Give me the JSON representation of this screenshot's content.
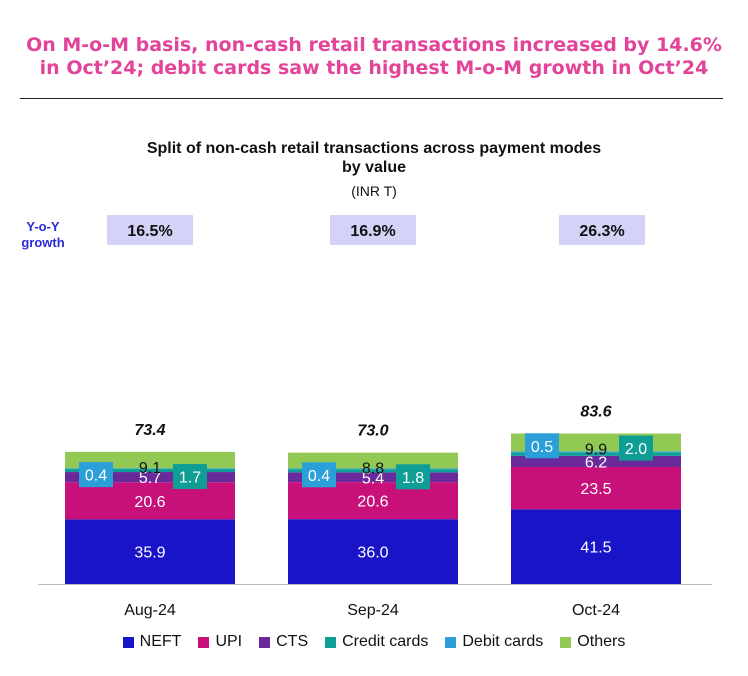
{
  "headline": {
    "line1": "On M-o-M basis, non-cash retail transactions increased by 14.6%",
    "line2": "in Oct’24; debit cards saw the highest M-o-M growth in Oct’24"
  },
  "yoy_label": {
    "line1": "Y-o-Y",
    "line2": "growth"
  },
  "chart_data": {
    "type": "bar",
    "stacked": true,
    "title_lines": [
      "Split of non-cash retail transactions across payment modes",
      "by value"
    ],
    "subtitle": "(INR T)",
    "categories": [
      "Aug-24",
      "Sep-24",
      "Oct-24"
    ],
    "totals": [
      "73.4",
      "73.0",
      "83.6"
    ],
    "yoy_growth": [
      "16.5%",
      "16.9%",
      "26.3%"
    ],
    "series": [
      {
        "name": "NEFT",
        "color": "#1a14c8",
        "values": [
          35.9,
          36.0,
          41.5
        ],
        "labels": [
          "35.9",
          "36.0",
          "41.5"
        ]
      },
      {
        "name": "UPI",
        "color": "#c8107a",
        "values": [
          20.6,
          20.6,
          23.5
        ],
        "labels": [
          "20.6",
          "20.6",
          "23.5"
        ]
      },
      {
        "name": "CTS",
        "color": "#6a2a9c",
        "values": [
          5.7,
          5.4,
          6.2
        ],
        "labels": [
          "5.7",
          "5.4",
          "6.2"
        ]
      },
      {
        "name": "Credit cards",
        "color": "#0f9e96",
        "values": [
          1.7,
          1.8,
          2.0
        ],
        "labels": [
          "1.7",
          "1.8",
          "2.0"
        ]
      },
      {
        "name": "Debit cards",
        "color": "#2b9fd8",
        "values": [
          0.4,
          0.4,
          0.5
        ],
        "labels": [
          "0.4",
          "0.4",
          "0.5"
        ]
      },
      {
        "name": "Others",
        "color": "#92c954",
        "values": [
          9.1,
          8.8,
          9.9
        ],
        "labels": [
          "9.1",
          "8.8",
          "9.9"
        ]
      }
    ],
    "yoy_box_color": "#d4d2f6",
    "ylim": [
      0,
      100
    ],
    "grid": false,
    "legend_position": "bottom"
  }
}
